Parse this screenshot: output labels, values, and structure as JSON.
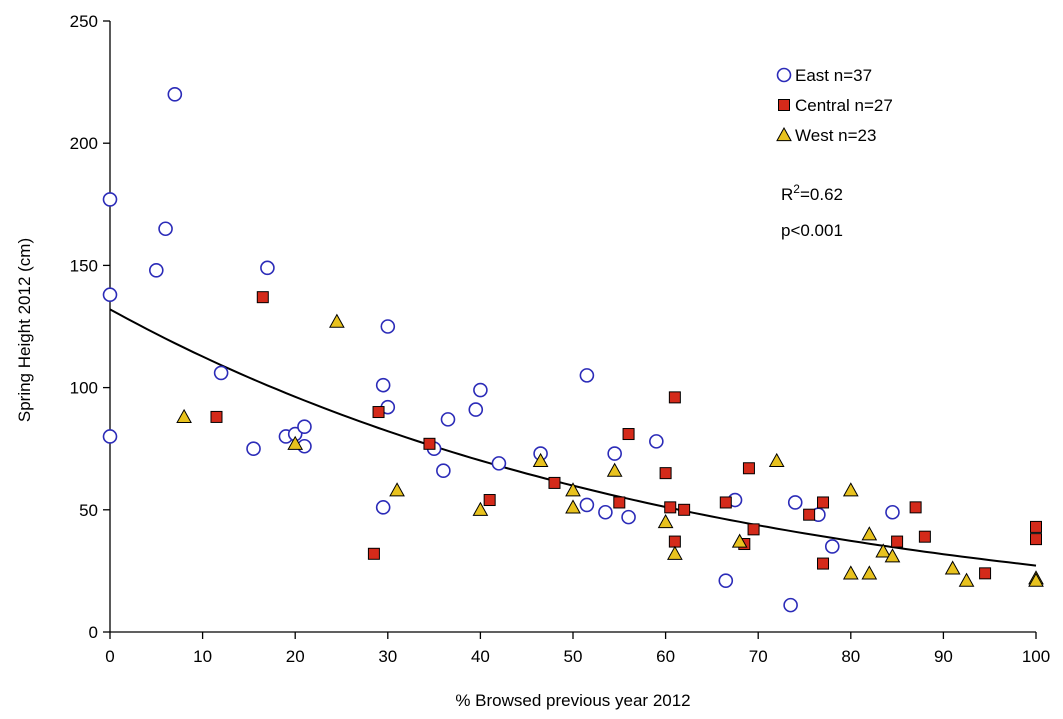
{
  "chart_data": {
    "type": "scatter",
    "title": "",
    "xlabel": "% Browsed previous year 2012",
    "ylabel": "Spring Height 2012 (cm)",
    "xlim": [
      0,
      100
    ],
    "ylim": [
      0,
      250
    ],
    "xticks": [
      0,
      10,
      20,
      30,
      40,
      50,
      60,
      70,
      80,
      90,
      100
    ],
    "yticks": [
      0,
      50,
      100,
      150,
      200,
      250
    ],
    "grid": false,
    "legend_position": "top-right",
    "series": [
      {
        "name": "East n=37",
        "marker": "circle-open",
        "color": "#2b2bb8",
        "points": [
          [
            0,
            177
          ],
          [
            0,
            138
          ],
          [
            0,
            80
          ],
          [
            5,
            148
          ],
          [
            6,
            165
          ],
          [
            7,
            220
          ],
          [
            12,
            106
          ],
          [
            15.5,
            75
          ],
          [
            17,
            149
          ],
          [
            19,
            80
          ],
          [
            20,
            81
          ],
          [
            21,
            76
          ],
          [
            21,
            84
          ],
          [
            29.5,
            101
          ],
          [
            30,
            92
          ],
          [
            30,
            125
          ],
          [
            29.5,
            51
          ],
          [
            35,
            75
          ],
          [
            36,
            66
          ],
          [
            36.5,
            87
          ],
          [
            39.5,
            91
          ],
          [
            40,
            99
          ],
          [
            42,
            69
          ],
          [
            46.5,
            73
          ],
          [
            51.5,
            105
          ],
          [
            51.5,
            52
          ],
          [
            53.5,
            49
          ],
          [
            54.5,
            73
          ],
          [
            56,
            47
          ],
          [
            59,
            78
          ],
          [
            66.5,
            21
          ],
          [
            67.5,
            54
          ],
          [
            73.5,
            11
          ],
          [
            74,
            53
          ],
          [
            76.5,
            48
          ],
          [
            78,
            35
          ],
          [
            84.5,
            49
          ]
        ]
      },
      {
        "name": "Central n=27",
        "marker": "square-filled",
        "color": "#d42a1a",
        "points": [
          [
            11.5,
            88
          ],
          [
            16.5,
            137
          ],
          [
            28.5,
            32
          ],
          [
            29,
            90
          ],
          [
            34.5,
            77
          ],
          [
            41,
            54
          ],
          [
            48,
            61
          ],
          [
            55,
            53
          ],
          [
            56,
            81
          ],
          [
            60,
            65
          ],
          [
            60.5,
            51
          ],
          [
            61,
            96
          ],
          [
            61,
            37
          ],
          [
            62,
            50
          ],
          [
            66.5,
            53
          ],
          [
            68.5,
            36
          ],
          [
            69,
            67
          ],
          [
            69.5,
            42
          ],
          [
            75.5,
            48
          ],
          [
            77,
            53
          ],
          [
            77,
            28
          ],
          [
            85,
            37
          ],
          [
            87,
            51
          ],
          [
            88,
            39
          ],
          [
            94.5,
            24
          ],
          [
            100,
            43
          ],
          [
            100,
            38
          ]
        ]
      },
      {
        "name": "West n=23",
        "marker": "triangle-filled",
        "color": "#e8c21e",
        "points": [
          [
            8,
            88
          ],
          [
            20,
            77
          ],
          [
            24.5,
            127
          ],
          [
            31,
            58
          ],
          [
            40,
            50
          ],
          [
            46.5,
            70
          ],
          [
            50,
            58
          ],
          [
            50,
            51
          ],
          [
            54.5,
            66
          ],
          [
            60,
            45
          ],
          [
            61,
            32
          ],
          [
            68,
            37
          ],
          [
            72,
            70
          ],
          [
            80,
            58
          ],
          [
            80,
            24
          ],
          [
            82,
            24
          ],
          [
            82,
            40
          ],
          [
            83.5,
            33
          ],
          [
            84.5,
            31
          ],
          [
            91,
            26
          ],
          [
            92.5,
            21
          ],
          [
            100,
            22
          ],
          [
            100,
            21
          ]
        ]
      }
    ],
    "trendline": {
      "type": "exponential",
      "a": 132,
      "b": -0.0158
    },
    "annotations": {
      "r2_prefix": "R",
      "r2_sup": "2",
      "r2_suffix": "=0.62",
      "p_text": "p<0.001"
    }
  }
}
